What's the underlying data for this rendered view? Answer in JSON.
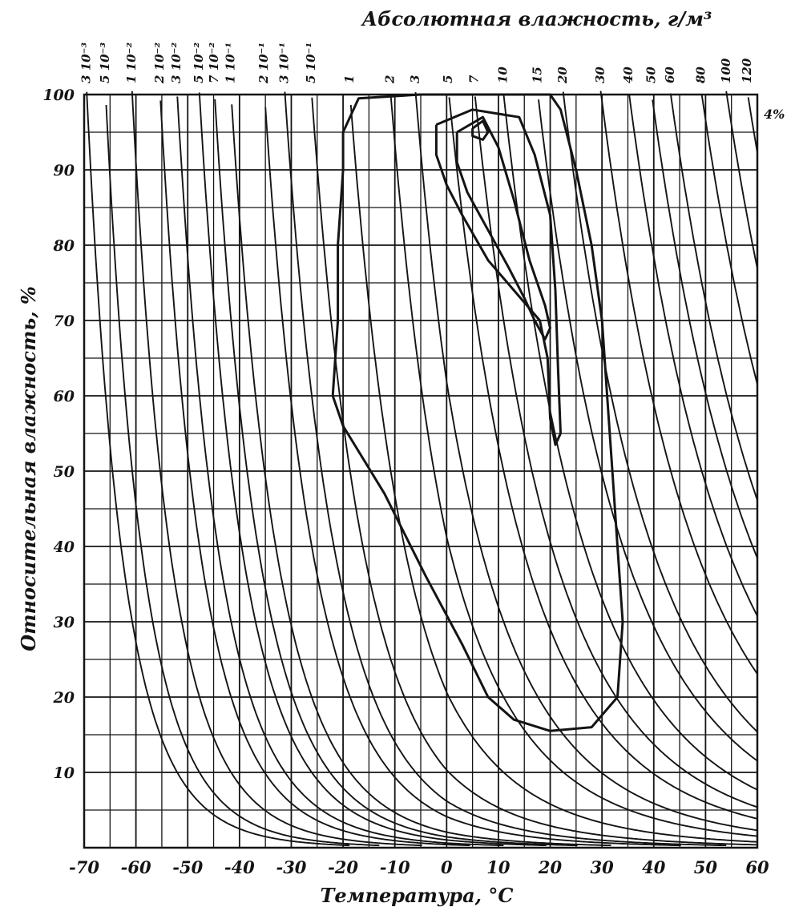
{
  "chart_data": {
    "type": "line",
    "title": "Абсолютная влажность, г/м³",
    "xlabel": "Температура, °С",
    "ylabel": "Относительная влажность, %",
    "x_ticks": [
      "-70",
      "-60",
      "-50",
      "-40",
      "-30",
      "-20",
      "-10",
      "0",
      "10",
      "20",
      "30",
      "40",
      "50",
      "60"
    ],
    "y_ticks": [
      "10",
      "20",
      "30",
      "40",
      "50",
      "60",
      "70",
      "80",
      "90",
      "100"
    ],
    "xlim": [
      -70,
      60
    ],
    "ylim": [
      0,
      100
    ],
    "grid": true,
    "top_ticks": [
      "3 10⁻³",
      "5 10⁻³",
      "1 10⁻²",
      "2 10⁻²",
      "3 10⁻²",
      "5 10⁻²",
      "7 10⁻²",
      "1 10⁻¹",
      "2 10⁻¹",
      "3 10⁻¹",
      "5 10⁻¹",
      "1",
      "2",
      "3",
      "5",
      "7",
      "10",
      "15",
      "20",
      "30",
      "40",
      "50",
      "60",
      "80",
      "100",
      "120"
    ],
    "isopleth_values": [
      0.003,
      0.005,
      0.01,
      0.02,
      0.03,
      0.05,
      0.07,
      0.1,
      0.2,
      0.3,
      0.5,
      1,
      2,
      3,
      5,
      7,
      10,
      15,
      20,
      30,
      40,
      50,
      60,
      80,
      100,
      120
    ],
    "corner_annotation": "4%",
    "series": [
      {
        "points": [
          [
            -20,
            95
          ],
          [
            -17,
            99.5
          ],
          [
            -5,
            100
          ],
          [
            5,
            100
          ],
          [
            20,
            100
          ],
          [
            22,
            98
          ],
          [
            25,
            90
          ],
          [
            28,
            80
          ],
          [
            30,
            70
          ],
          [
            31,
            60
          ],
          [
            32,
            50
          ],
          [
            33,
            40
          ],
          [
            34,
            30
          ],
          [
            33,
            20
          ],
          [
            28,
            16
          ],
          [
            20,
            15.5
          ],
          [
            13,
            17
          ],
          [
            8,
            20
          ],
          [
            3,
            27
          ],
          [
            -4,
            36
          ],
          [
            -12,
            47
          ],
          [
            -20,
            56
          ],
          [
            -22,
            60
          ],
          [
            -21,
            70
          ],
          [
            -21,
            80
          ],
          [
            -20,
            90
          ],
          [
            -20,
            95
          ]
        ]
      },
      {
        "points": [
          [
            -2,
            96
          ],
          [
            5,
            98
          ],
          [
            14,
            97
          ],
          [
            17,
            92
          ],
          [
            20,
            84
          ],
          [
            21,
            74
          ],
          [
            21.5,
            64
          ],
          [
            22,
            55
          ],
          [
            21,
            53.5
          ],
          [
            20,
            57
          ],
          [
            19.5,
            65
          ],
          [
            18,
            70
          ],
          [
            13,
            74
          ],
          [
            8,
            78
          ],
          [
            3,
            84
          ],
          [
            0,
            88
          ],
          [
            -2,
            92
          ],
          [
            -2,
            96
          ]
        ]
      },
      {
        "points": [
          [
            2,
            95
          ],
          [
            7,
            97
          ],
          [
            10,
            93
          ],
          [
            13,
            86
          ],
          [
            16,
            78
          ],
          [
            19,
            72
          ],
          [
            20,
            69
          ],
          [
            19,
            67.5
          ],
          [
            17,
            70
          ],
          [
            15,
            73
          ],
          [
            12,
            77
          ],
          [
            8,
            82
          ],
          [
            4,
            87
          ],
          [
            2,
            91
          ],
          [
            2,
            95
          ]
        ]
      },
      {
        "points": [
          [
            5,
            95.5
          ],
          [
            7,
            96.5
          ],
          [
            8,
            95
          ],
          [
            7,
            94
          ],
          [
            5,
            94.5
          ],
          [
            5,
            95.5
          ]
        ]
      }
    ]
  }
}
